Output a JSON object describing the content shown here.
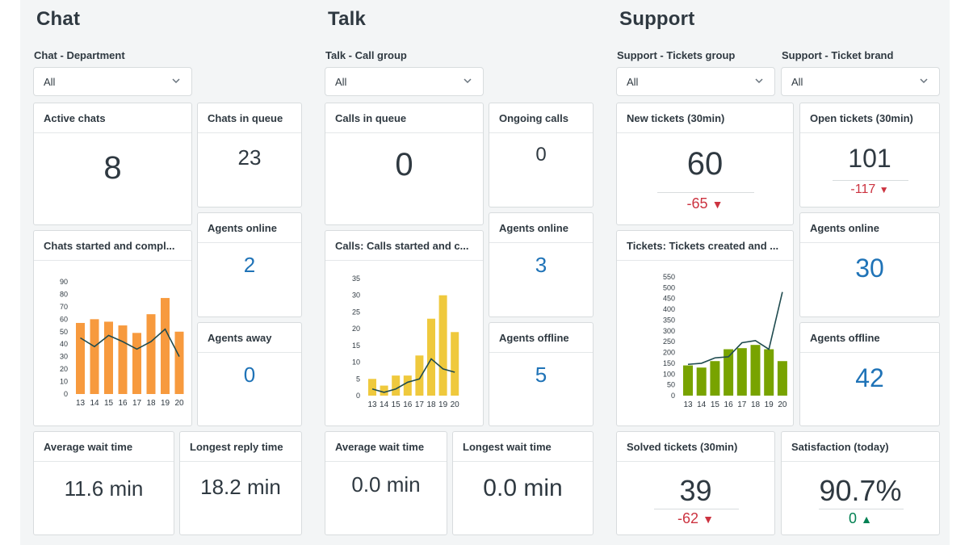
{
  "sections": {
    "chat": "Chat",
    "talk": "Talk",
    "support": "Support"
  },
  "filters": {
    "chat_department": {
      "label": "Chat - Department",
      "value": "All"
    },
    "talk_call_group": {
      "label": "Talk - Call group",
      "value": "All"
    },
    "support_tickets_group": {
      "label": "Support - Tickets group",
      "value": "All"
    },
    "support_ticket_brand": {
      "label": "Support - Ticket brand",
      "value": "All"
    }
  },
  "chat": {
    "active_chats": {
      "title": "Active chats",
      "value": "8"
    },
    "chats_in_queue": {
      "title": "Chats in queue",
      "value": "23"
    },
    "agents_online": {
      "title": "Agents online",
      "value": "2"
    },
    "agents_away": {
      "title": "Agents away",
      "value": "0"
    },
    "chart_title": "Chats started and compl...",
    "average_wait": {
      "title": "Average wait time",
      "value": "11.6 min"
    },
    "longest_reply": {
      "title": "Longest reply time",
      "value": "18.2 min"
    }
  },
  "talk": {
    "calls_in_queue": {
      "title": "Calls in queue",
      "value": "0"
    },
    "ongoing_calls": {
      "title": "Ongoing calls",
      "value": "0"
    },
    "agents_online": {
      "title": "Agents online",
      "value": "3"
    },
    "agents_offline": {
      "title": "Agents offline",
      "value": "5"
    },
    "chart_title": "Calls: Calls started and c...",
    "average_wait": {
      "title": "Average wait time",
      "value": "0.0 min"
    },
    "longest_wait": {
      "title": "Longest wait time",
      "value": "0.0 min"
    }
  },
  "support": {
    "new_tickets": {
      "title": "New tickets (30min)",
      "value": "60",
      "delta": "-65"
    },
    "open_tickets": {
      "title": "Open tickets (30min)",
      "value": "101",
      "delta": "-117"
    },
    "agents_online": {
      "title": "Agents online",
      "value": "30"
    },
    "agents_offline": {
      "title": "Agents offline",
      "value": "42"
    },
    "chart_title": "Tickets: Tickets created and ...",
    "solved_tickets": {
      "title": "Solved tickets (30min)",
      "value": "39",
      "delta": "-62"
    },
    "satisfaction": {
      "title": "Satisfaction (today)",
      "value": "90.7%",
      "delta": "0"
    }
  },
  "colors": {
    "chat_bar": "#f79a3e",
    "talk_bar": "#efc93d",
    "support_bar": "#78a300",
    "line": "#1f4b4f",
    "metric_blue": "#1f73b7",
    "negative": "#cc3340",
    "positive": "#038153"
  },
  "chart_data": [
    {
      "type": "bar",
      "categories": [
        "13",
        "14",
        "15",
        "16",
        "17",
        "18",
        "19",
        "20"
      ],
      "series": [
        {
          "values": [
            57,
            60,
            58,
            55,
            49,
            64,
            77,
            50
          ]
        },
        {
          "type": "line",
          "values": [
            45,
            38,
            47,
            42,
            36,
            42,
            52,
            30
          ]
        }
      ],
      "yticks": [
        0,
        10,
        20,
        30,
        40,
        50,
        60,
        70,
        80,
        90
      ],
      "ylim": [
        0,
        90
      ]
    },
    {
      "type": "bar",
      "categories": [
        "13",
        "14",
        "15",
        "16",
        "17",
        "18",
        "19",
        "20"
      ],
      "series": [
        {
          "values": [
            5,
            3,
            6,
            6,
            12,
            23,
            30,
            19
          ]
        },
        {
          "type": "line",
          "values": [
            2,
            1,
            2,
            4,
            5,
            11,
            8,
            7
          ]
        }
      ],
      "yticks": [
        0,
        5,
        10,
        15,
        20,
        25,
        30,
        35
      ],
      "ylim": [
        0,
        35
      ]
    },
    {
      "type": "bar",
      "categories": [
        "13",
        "14",
        "15",
        "16",
        "17",
        "18",
        "19",
        "20"
      ],
      "series": [
        {
          "values": [
            140,
            130,
            160,
            215,
            220,
            235,
            215,
            160
          ]
        },
        {
          "type": "line",
          "values": [
            145,
            150,
            175,
            180,
            245,
            255,
            215,
            480
          ]
        }
      ],
      "yticks": [
        0,
        50,
        100,
        150,
        200,
        250,
        300,
        350,
        400,
        450,
        500,
        550
      ],
      "ylim": [
        0,
        550
      ]
    }
  ]
}
